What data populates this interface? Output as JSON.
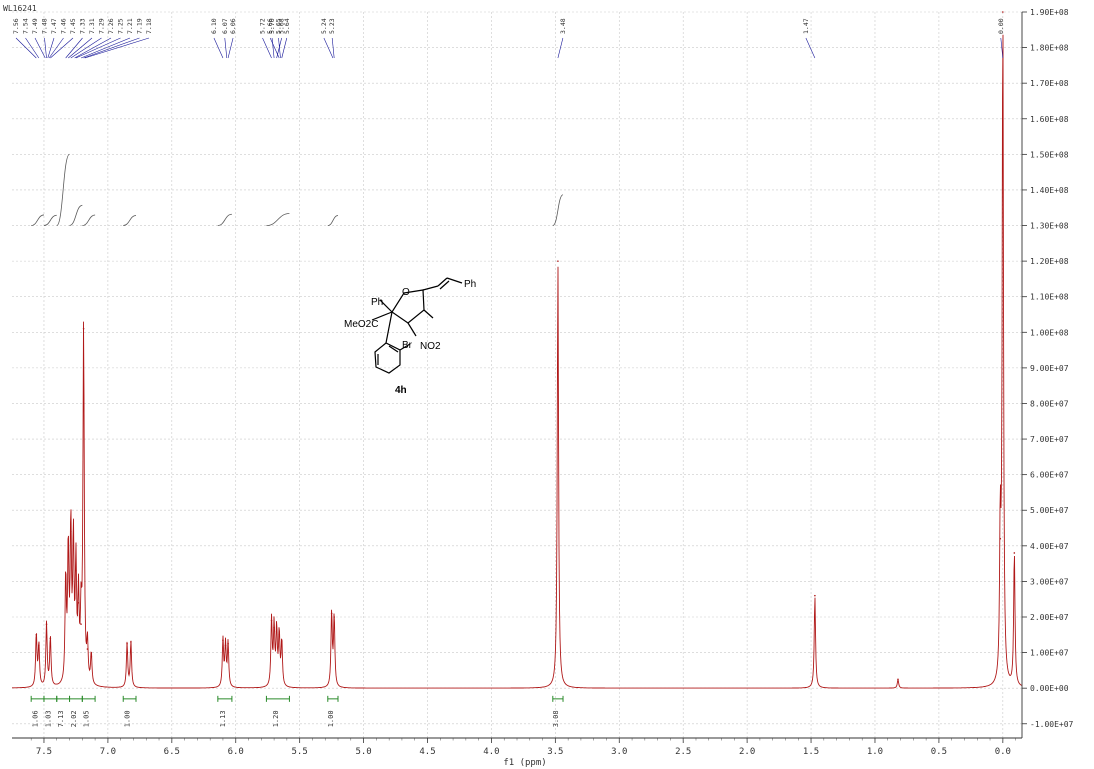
{
  "chart_data": {
    "type": "line",
    "sample_label": "WL16241",
    "xlabel": "f1 (ppm)",
    "xlim": [
      7.75,
      -0.15
    ],
    "x_ticks": [
      "7.5",
      "7.0",
      "6.5",
      "6.0",
      "5.5",
      "5.0",
      "4.5",
      "4.0",
      "3.5",
      "3.0",
      "2.5",
      "2.0",
      "1.5",
      "1.0",
      "0.5",
      "0.0"
    ],
    "x_tick_values": [
      7.5,
      7.0,
      6.5,
      6.0,
      5.5,
      5.0,
      4.5,
      4.0,
      3.5,
      3.0,
      2.5,
      2.0,
      1.5,
      1.0,
      0.5,
      0.0
    ],
    "ylim": [
      -14000000,
      190000000
    ],
    "y_ticks": [
      "1.90E+08",
      "1.80E+08",
      "1.70E+08",
      "1.60E+08",
      "1.50E+08",
      "1.40E+08",
      "1.30E+08",
      "1.20E+08",
      "1.10E+08",
      "1.00E+08",
      "9.00E+07",
      "8.00E+07",
      "7.00E+07",
      "6.00E+07",
      "5.00E+07",
      "4.00E+07",
      "3.00E+07",
      "2.00E+07",
      "1.00E+07",
      "0.00E+00",
      "-1.00E+07"
    ],
    "y_tick_values": [
      190000000,
      180000000,
      170000000,
      160000000,
      150000000,
      140000000,
      130000000,
      120000000,
      110000000,
      100000000,
      90000000,
      80000000,
      70000000,
      60000000,
      50000000,
      40000000,
      30000000,
      20000000,
      10000000,
      0,
      -10000000
    ],
    "peak_labels": [
      "7.56",
      "7.54",
      "7.49",
      "7.48",
      "7.47",
      "7.46",
      "7.45",
      "7.33",
      "7.31",
      "7.29",
      "7.26",
      "7.25",
      "7.21",
      "7.19",
      "7.18",
      "6.10",
      "6.07",
      "6.06",
      "5.72",
      "5.70",
      "5.68",
      "5.66",
      "5.65",
      "5.64",
      "5.24",
      "5.23",
      "3.48",
      "1.47",
      "0.00"
    ],
    "peaks": [
      {
        "x": 7.56,
        "y": 15000000
      },
      {
        "x": 7.54,
        "y": 12000000
      },
      {
        "x": 7.48,
        "y": 18000000
      },
      {
        "x": 7.45,
        "y": 14000000
      },
      {
        "x": 7.33,
        "y": 30000000
      },
      {
        "x": 7.31,
        "y": 38000000
      },
      {
        "x": 7.29,
        "y": 44000000
      },
      {
        "x": 7.27,
        "y": 40000000
      },
      {
        "x": 7.25,
        "y": 33000000
      },
      {
        "x": 7.23,
        "y": 24000000
      },
      {
        "x": 7.21,
        "y": 18000000
      },
      {
        "x": 7.19,
        "y": 101000000
      },
      {
        "x": 7.16,
        "y": 11000000
      },
      {
        "x": 7.13,
        "y": 9000000
      },
      {
        "x": 6.85,
        "y": 12500000
      },
      {
        "x": 6.82,
        "y": 13000000
      },
      {
        "x": 6.1,
        "y": 13500000
      },
      {
        "x": 6.08,
        "y": 12000000
      },
      {
        "x": 6.06,
        "y": 12500000
      },
      {
        "x": 5.72,
        "y": 19000000
      },
      {
        "x": 5.7,
        "y": 17000000
      },
      {
        "x": 5.68,
        "y": 16000000
      },
      {
        "x": 5.66,
        "y": 15000000
      },
      {
        "x": 5.64,
        "y": 13000000
      },
      {
        "x": 5.25,
        "y": 21000000
      },
      {
        "x": 5.23,
        "y": 20000000
      },
      {
        "x": 3.48,
        "y": 120000000
      },
      {
        "x": 1.47,
        "y": 26000000
      },
      {
        "x": 0.82,
        "y": 2500000
      },
      {
        "x": 0.02,
        "y": 42000000
      },
      {
        "x": 0.0,
        "y": 190000000
      },
      {
        "x": -0.09,
        "y": 38000000
      }
    ],
    "integrals": [
      {
        "from": 7.6,
        "to": 7.5,
        "value": "1.06"
      },
      {
        "from": 7.5,
        "to": 7.4,
        "value": "1.03"
      },
      {
        "from": 7.4,
        "to": 7.3,
        "value": "7.13"
      },
      {
        "from": 7.3,
        "to": 7.2,
        "value": "2.02"
      },
      {
        "from": 7.2,
        "to": 7.1,
        "value": "1.05"
      },
      {
        "from": 6.88,
        "to": 6.78,
        "value": "1.00"
      },
      {
        "from": 6.14,
        "to": 6.03,
        "value": "1.13"
      },
      {
        "from": 5.76,
        "to": 5.58,
        "value": "1.20"
      },
      {
        "from": 5.28,
        "to": 5.2,
        "value": "1.00"
      },
      {
        "from": 3.52,
        "to": 3.44,
        "value": "3.08"
      }
    ]
  },
  "structure": {
    "compound_label": "4h",
    "atom_labels": [
      "Ph",
      "O",
      "Ph",
      "MeO2C",
      "NO2",
      "Br"
    ]
  },
  "colors": {
    "spectrum": "#b01818",
    "integral_curve": "#5a5a5a",
    "integral_bracket": "#2a8a2a",
    "peak_leader": "#1a1a9a",
    "grid": "#c9c9c9"
  }
}
